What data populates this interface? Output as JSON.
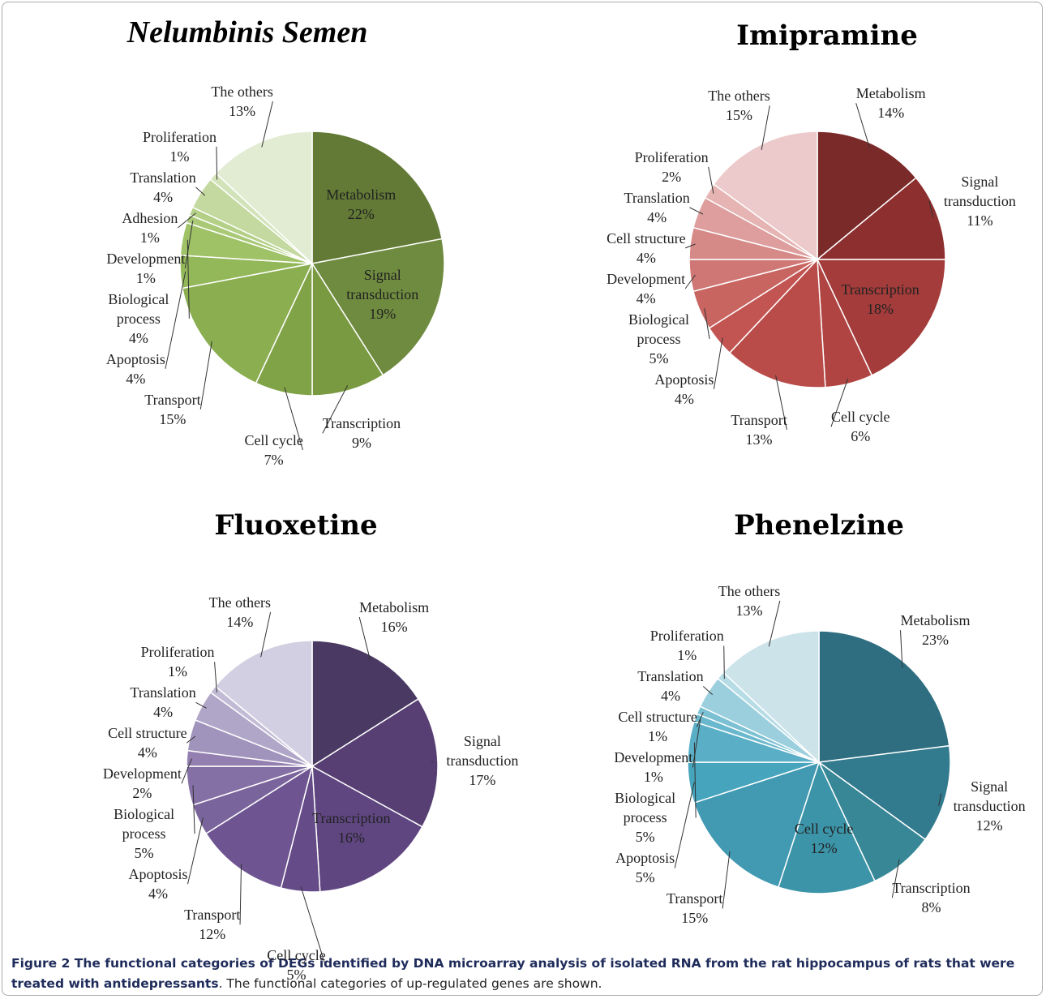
{
  "chart_data": [
    {
      "type": "pie",
      "title": "Nelumbinis Semen",
      "categories": [
        "Metabolism",
        "Signal transduction",
        "Transcription",
        "Cell cycle",
        "Transport",
        "Apoptosis",
        "Biological process",
        "Development",
        "Adhesion",
        "Translation",
        "Proliferation",
        "The others"
      ],
      "values": [
        22,
        19,
        9,
        7,
        15,
        4,
        4,
        1,
        1,
        4,
        1,
        13
      ],
      "value_labels": [
        "22%",
        "19%",
        "9%",
        "7%",
        "15%",
        "4%",
        "4%",
        "1%",
        "1%",
        "4%",
        "1%",
        "13%"
      ],
      "colors": [
        "#627a35",
        "#6f8b3f",
        "#7a9a42",
        "#80a347",
        "#8aae50",
        "#93b85a",
        "#9fc267",
        "#a9c977",
        "#b4d087",
        "#c3d9a0",
        "#d2e3b9",
        "#e2ecd3"
      ]
    },
    {
      "type": "pie",
      "title": "Imipramine",
      "categories": [
        "Metabolism",
        "Signal transduction",
        "Transcription",
        "Cell cycle",
        "Transport",
        "Apoptosis",
        "Biological process",
        "Development",
        "Cell structure",
        "Translation",
        "Proliferation",
        "The others"
      ],
      "values": [
        14,
        11,
        18,
        6,
        13,
        4,
        5,
        4,
        4,
        4,
        2,
        15
      ],
      "value_labels": [
        "14%",
        "11%",
        "18%",
        "6%",
        "13%",
        "4%",
        "5%",
        "4%",
        "4%",
        "4%",
        "2%",
        "15%"
      ],
      "colors": [
        "#7b2a2a",
        "#8e2f2f",
        "#a33c3a",
        "#b04442",
        "#b94c48",
        "#c25552",
        "#c86561",
        "#cf7775",
        "#d68a88",
        "#dd9e9d",
        "#e5b4b3",
        "#ecc9ca"
      ]
    },
    {
      "type": "pie",
      "title": "Fluoxetine",
      "categories": [
        "Metabolism",
        "Signal transduction",
        "Transcription",
        "Cell cycle",
        "Transport",
        "Apoptosis",
        "Biological process",
        "Development",
        "Cell structure",
        "Translation",
        "Proliferation",
        "The others"
      ],
      "values": [
        16,
        17,
        16,
        5,
        12,
        4,
        5,
        2,
        4,
        4,
        1,
        14
      ],
      "value_labels": [
        "16%",
        "17%",
        "16%",
        "5%",
        "12%",
        "4%",
        "5%",
        "2%",
        "4%",
        "4%",
        "1%",
        "14%"
      ],
      "colors": [
        "#4a3a63",
        "#573f73",
        "#5f4680",
        "#654b88",
        "#6e5592",
        "#7a649c",
        "#8570a5",
        "#937fb0",
        "#a194bc",
        "#b0a7c8",
        "#c2bbd5",
        "#d3cfe2"
      ]
    },
    {
      "type": "pie",
      "title": "Phenelzine",
      "categories": [
        "Metabolism",
        "Signal transduction",
        "Transcription",
        "Cell cycle",
        "Transport",
        "Apoptosis",
        "Biological process",
        "Development",
        "Cell structure",
        "Translation",
        "Proliferation",
        "The others"
      ],
      "values": [
        23,
        12,
        8,
        12,
        15,
        5,
        5,
        1,
        1,
        4,
        1,
        13
      ],
      "value_labels": [
        "23%",
        "12%",
        "8%",
        "12%",
        "15%",
        "5%",
        "5%",
        "1%",
        "1%",
        "4%",
        "1%",
        "13%"
      ],
      "colors": [
        "#2e6e80",
        "#327a8d",
        "#378797",
        "#3c94a8",
        "#4199b2",
        "#47a4bd",
        "#5aafc7",
        "#6ab8cd",
        "#7cc1d3",
        "#9ccfdd",
        "#b6dce6",
        "#cde3ea"
      ]
    }
  ],
  "caption": {
    "bold": "Figure 2 The functional categories of DEGs identified by DNA microarray analysis of isolated RNA from the rat hippocampus of rats that were treated with antidepressants",
    "text": ". The functional categories of up-regulated genes are shown."
  }
}
